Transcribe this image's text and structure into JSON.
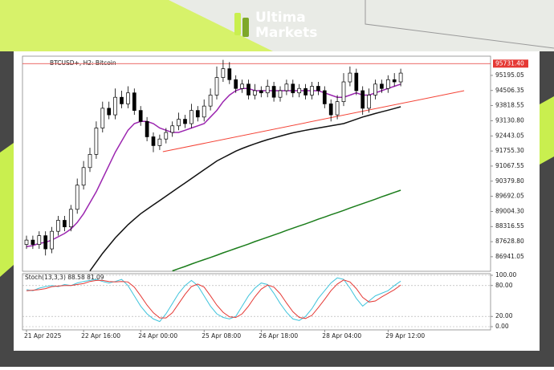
{
  "brand": {
    "line1": "Ultima",
    "line2": "Markets"
  },
  "chart_data": {
    "type": "candlestick",
    "title": "BTCUSD+, H2: Bitcoin",
    "categories": [
      "21 Apr 2025",
      null,
      null,
      null,
      null,
      null,
      null,
      null,
      null,
      "22 Apr 16:00",
      null,
      null,
      null,
      null,
      null,
      null,
      null,
      null,
      "24 Apr 00:00",
      null,
      null,
      null,
      null,
      null,
      null,
      null,
      null,
      null,
      "25 Apr 08:00",
      null,
      null,
      null,
      null,
      null,
      null,
      null,
      null,
      "26 Apr 18:00",
      null,
      null,
      null,
      null,
      null,
      null,
      null,
      null,
      null,
      "28 Apr 04:00",
      null,
      null,
      null,
      null,
      null,
      null,
      null,
      null,
      null,
      "29 Apr 12:00",
      null,
      null
    ],
    "open": [
      87500,
      87700,
      87500,
      87900,
      87300,
      88100,
      88600,
      88300,
      89100,
      90200,
      91000,
      91600,
      92800,
      93700,
      93400,
      94200,
      93900,
      94400,
      93600,
      93100,
      92400,
      92000,
      92300,
      92600,
      92900,
      93200,
      93000,
      93600,
      93300,
      93800,
      94300,
      95100,
      95500,
      95000,
      94600,
      94800,
      94300,
      94500,
      94400,
      94700,
      94200,
      94500,
      94800,
      94400,
      94600,
      94300,
      94700,
      94500,
      93900,
      93400,
      94000,
      94900,
      95300,
      94500,
      93700,
      94300,
      94800,
      94600,
      95000,
      94900
    ],
    "high": [
      87900,
      87900,
      88100,
      88100,
      88300,
      88800,
      88800,
      89300,
      90500,
      91300,
      91900,
      93100,
      94000,
      94000,
      94600,
      94500,
      94700,
      94600,
      93800,
      93300,
      92600,
      92500,
      92800,
      93100,
      93500,
      93400,
      93900,
      93800,
      94100,
      94600,
      95600,
      95900,
      95800,
      95200,
      95000,
      95000,
      94800,
      94700,
      95000,
      94900,
      94700,
      95000,
      95000,
      94800,
      94800,
      94900,
      94900,
      94700,
      94100,
      94300,
      95300,
      95600,
      95500,
      94700,
      94600,
      95000,
      95000,
      95200,
      95300,
      95500
    ],
    "low": [
      87300,
      87300,
      87300,
      87000,
      87100,
      87900,
      88100,
      88100,
      88900,
      90000,
      90800,
      91400,
      92600,
      93200,
      93200,
      93700,
      93700,
      93400,
      92900,
      92200,
      91700,
      91800,
      92100,
      92400,
      92700,
      92800,
      92800,
      93100,
      93100,
      93600,
      94100,
      94900,
      94800,
      94400,
      94400,
      94100,
      94100,
      94200,
      94200,
      94000,
      94000,
      94300,
      94200,
      94200,
      94100,
      94100,
      94300,
      93700,
      93100,
      93200,
      93800,
      94700,
      94300,
      93400,
      93500,
      94100,
      94400,
      94400,
      94700,
      94700
    ],
    "close": [
      87700,
      87500,
      87900,
      87300,
      88100,
      88600,
      88300,
      89100,
      90200,
      91000,
      91600,
      92800,
      93700,
      93400,
      94200,
      93900,
      94400,
      93600,
      93100,
      92400,
      92000,
      92300,
      92600,
      92900,
      93200,
      93000,
      93600,
      93300,
      93800,
      94300,
      95100,
      95500,
      95000,
      94600,
      94800,
      94300,
      94500,
      94400,
      94700,
      94200,
      94500,
      94800,
      94400,
      94600,
      94300,
      94700,
      94500,
      93900,
      93400,
      94000,
      94900,
      95300,
      94500,
      93700,
      94300,
      94800,
      94600,
      95000,
      94900,
      95300
    ],
    "ylim": [
      86280,
      96070
    ],
    "yticks": [
      {
        "value": 95195.05,
        "label": "95195.05"
      },
      {
        "value": 94506.35,
        "label": "94506.35"
      },
      {
        "value": 93818.55,
        "label": "93818.55"
      },
      {
        "value": 93130.8,
        "label": "93130.80"
      },
      {
        "value": 92443.05,
        "label": "92443.05"
      },
      {
        "value": 91755.3,
        "label": "91755.30"
      },
      {
        "value": 91067.55,
        "label": "91067.55"
      },
      {
        "value": 90379.8,
        "label": "90379.80"
      },
      {
        "value": 89692.05,
        "label": "89692.05"
      },
      {
        "value": 89004.3,
        "label": "89004.30"
      },
      {
        "value": 88316.55,
        "label": "88316.55"
      },
      {
        "value": 87628.8,
        "label": "87628.80"
      },
      {
        "value": 86941.05,
        "label": "86941.05"
      }
    ],
    "price_line": {
      "value": 95731.4,
      "label": "95731.40",
      "color": "#e53935"
    },
    "lines": [
      {
        "color": "#9c27b0",
        "values": [
          87400,
          87450,
          87550,
          87600,
          87700,
          87850,
          88000,
          88200,
          88500,
          88900,
          89400,
          89900,
          90500,
          91100,
          91700,
          92200,
          92700,
          93000,
          93100,
          93100,
          93000,
          92800,
          92700,
          92600,
          92600,
          92700,
          92800,
          92900,
          93000,
          93300,
          93600,
          94000,
          94300,
          94500,
          94600,
          94600,
          94500,
          94500,
          94500,
          94500,
          94500,
          94500,
          94500,
          94500,
          94500,
          94500,
          94500,
          94400,
          94300,
          94200,
          94200,
          94300,
          94400,
          94300,
          94300,
          94400,
          94500,
          94600,
          94700,
          94800
        ]
      },
      {
        "color": "#111111",
        "values": [
          null,
          null,
          null,
          null,
          null,
          null,
          null,
          null,
          null,
          null,
          86300,
          86700,
          87100,
          87450,
          87800,
          88100,
          88400,
          88650,
          88900,
          89100,
          89300,
          89500,
          89700,
          89900,
          90100,
          90300,
          90500,
          90700,
          90900,
          91100,
          91300,
          91450,
          91600,
          91750,
          91870,
          91980,
          92080,
          92180,
          92270,
          92350,
          92430,
          92510,
          92580,
          92640,
          92700,
          92750,
          92800,
          92850,
          92900,
          92950,
          93000,
          93100,
          93200,
          93300,
          93380,
          93460,
          93540,
          93610,
          93690,
          93770
        ]
      },
      {
        "color": "#1b7d1b",
        "values": [
          null,
          null,
          null,
          null,
          null,
          null,
          null,
          null,
          null,
          null,
          null,
          null,
          null,
          null,
          null,
          null,
          null,
          null,
          null,
          null,
          null,
          null,
          null,
          86300,
          86400,
          86500,
          86610,
          86710,
          86810,
          86910,
          87010,
          87120,
          87220,
          87320,
          87420,
          87520,
          87630,
          87730,
          87830,
          87930,
          88030,
          88140,
          88240,
          88340,
          88440,
          88540,
          88650,
          88750,
          88850,
          88950,
          89050,
          89160,
          89260,
          89360,
          89460,
          89560,
          89670,
          89770,
          89870,
          89970
        ]
      }
    ],
    "trendline": {
      "color": "#f44336",
      "x": [
        21.5,
        69
      ],
      "values": [
        91723,
        94499
      ]
    },
    "indicator": {
      "type": "line",
      "title": "Stoch(13,3,3) 88.58 81.09",
      "ylim": [
        0,
        100
      ],
      "yticks": [
        {
          "value": 100,
          "label": "100.00"
        },
        {
          "value": 80,
          "label": "80.00"
        },
        {
          "value": 20,
          "label": "20.00"
        },
        {
          "value": 0,
          "label": "0.00"
        }
      ],
      "series": [
        {
          "color": "#40c4dc",
          "values": [
            72,
            70,
            75,
            78,
            80,
            78,
            82,
            80,
            85,
            88,
            90,
            92,
            88,
            85,
            88,
            92,
            80,
            60,
            40,
            25,
            15,
            10,
            25,
            45,
            65,
            80,
            90,
            80,
            60,
            40,
            25,
            18,
            15,
            20,
            40,
            60,
            75,
            85,
            82,
            65,
            45,
            28,
            15,
            12,
            20,
            35,
            55,
            70,
            85,
            95,
            92,
            75,
            55,
            40,
            50,
            60,
            65,
            70,
            80,
            88.58
          ]
        },
        {
          "color": "#e53935",
          "values": [
            70,
            71,
            72,
            74,
            78,
            79,
            80,
            80,
            82,
            84,
            88,
            90,
            90,
            88,
            87,
            88,
            87,
            77,
            60,
            42,
            27,
            17,
            17,
            27,
            45,
            63,
            78,
            83,
            77,
            60,
            42,
            28,
            19,
            18,
            25,
            40,
            58,
            73,
            81,
            77,
            64,
            46,
            29,
            18,
            16,
            22,
            37,
            53,
            70,
            83,
            91,
            87,
            74,
            57,
            48,
            50,
            58,
            65,
            72,
            81.09
          ]
        }
      ]
    }
  }
}
